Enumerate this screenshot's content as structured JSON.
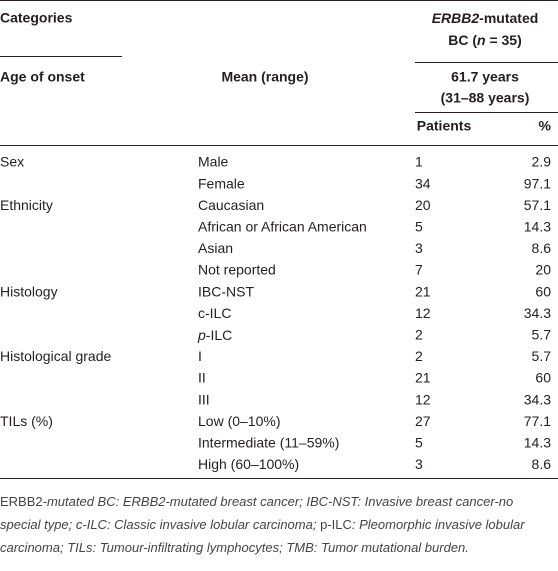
{
  "table": {
    "header": {
      "categories": "Categories",
      "group": [
        {
          "text": "ERBB2",
          "italic": true
        },
        {
          "text": "-mutated",
          "italic": false
        },
        {
          "text": "BC (",
          "italic": false,
          "newline": true
        },
        {
          "text": "n",
          "italic": true
        },
        {
          "text": " = 35)",
          "italic": false
        }
      ],
      "age_of_onset": "Age of onset",
      "mean_range": "Mean (range)",
      "age_value": "61.7 years",
      "age_range": "(31–88 years)",
      "patients": "Patients",
      "percent": "%"
    },
    "rows": [
      [
        "Sex",
        "Male",
        1,
        2.9
      ],
      [
        null,
        "Female",
        34,
        97.1
      ],
      [
        "Ethnicity",
        "Caucasian",
        20,
        57.1
      ],
      [
        null,
        "African or African American",
        5,
        14.3
      ],
      [
        null,
        "Asian",
        3,
        8.6
      ],
      [
        null,
        "Not reported",
        7,
        20
      ],
      [
        "Histology",
        "IBC-NST",
        21,
        60
      ],
      [
        null,
        "c-ILC",
        12,
        34.3
      ],
      [
        null,
        [
          {
            "text": "p",
            "italic": true
          },
          {
            "text": "-ILC",
            "italic": false
          }
        ],
        2,
        5.7
      ],
      [
        "Histological grade",
        "I",
        2,
        5.7
      ],
      [
        null,
        "II",
        21,
        60
      ],
      [
        null,
        "III",
        12,
        34.3
      ],
      [
        "TILs (%)",
        "Low (0–10%)",
        27,
        77.1
      ],
      [
        null,
        "Intermediate (11–59%)",
        5,
        14.3
      ],
      [
        null,
        "High (60–100%)",
        3,
        8.6
      ]
    ],
    "footnote": [
      {
        "text": "ERBB2",
        "italic": false
      },
      {
        "text": "-mutated BC: ERBB2-mutated breast cancer; IBC-NST: Invasive breast cancer-no special type; c-ILC: Classic invasive lobular carcinoma; ",
        "italic": true
      },
      {
        "text": "p-ILC",
        "italic": false
      },
      {
        "text": ": Pleomorphic invasive lobular carcinoma; TILs: Tumour-infiltrating lymphocytes; TMB: Tumor mutational burden.",
        "italic": true
      }
    ]
  }
}
